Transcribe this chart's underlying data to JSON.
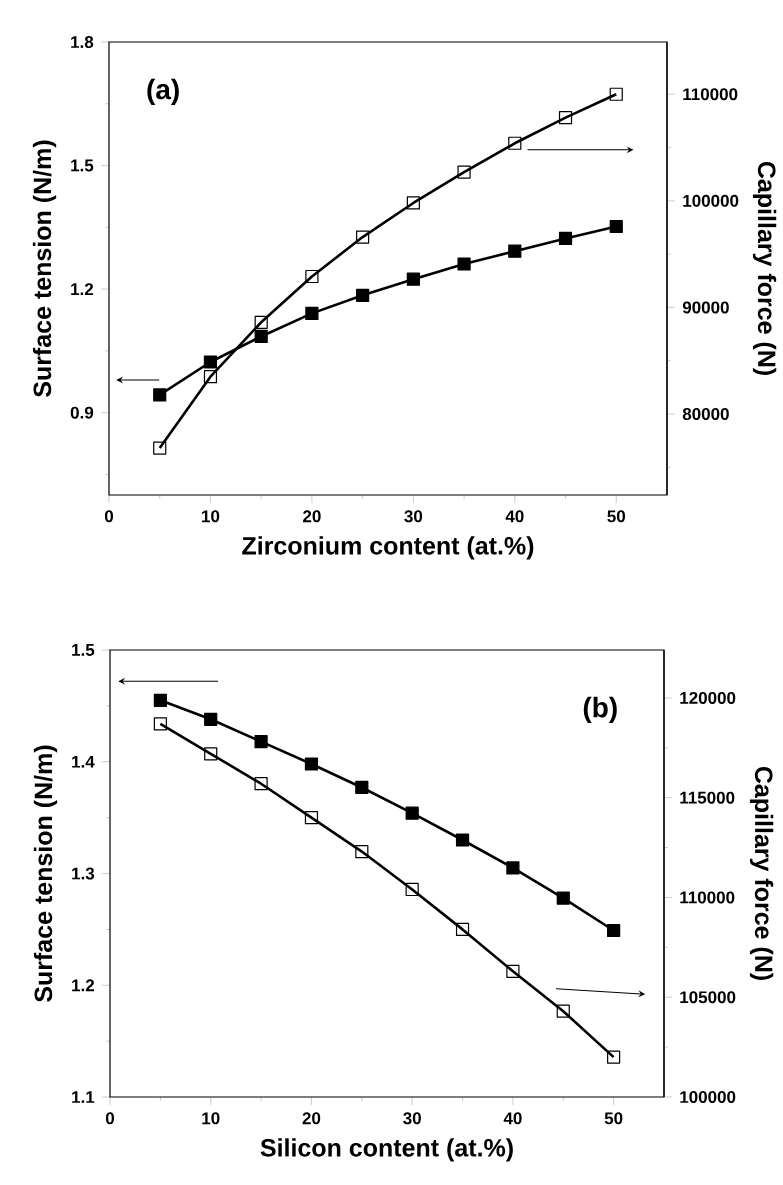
{
  "chart_data": [
    {
      "type": "line",
      "xlabel": "Zirconium content (at.%)",
      "ylabel": "Surface tension (N/m)",
      "y2label": "Capillary force (N)",
      "annotations": [
        "(a)"
      ],
      "marker": "square",
      "x": [
        5,
        10,
        15,
        20,
        25,
        30,
        35,
        40,
        45,
        50
      ],
      "xlim": [
        0,
        55
      ],
      "xticks": [
        0,
        {
          "value": 5,
          "label": null
        },
        10,
        {
          "value": 15,
          "label": null
        },
        20,
        {
          "value": 25,
          "label": null
        },
        30,
        {
          "value": 35,
          "label": null
        },
        40,
        {
          "value": 45,
          "label": null
        },
        50
      ],
      "ylim": [
        0.7,
        1.8
      ],
      "yticks": [
        {
          "value": 0.75,
          "label": null
        },
        0.9,
        {
          "value": 1.05,
          "label": null
        },
        1.2,
        {
          "value": 1.35,
          "label": null
        },
        1.5,
        {
          "value": 1.65,
          "label": null
        },
        1.8
      ],
      "y2lim": [
        72400,
        114900
      ],
      "y2ticks": [
        {
          "value": 75000,
          "label": null
        },
        80000,
        {
          "value": 85000,
          "label": null
        },
        90000,
        {
          "value": 95000,
          "label": null
        },
        100000,
        {
          "value": 105000,
          "label": null
        },
        110000
      ],
      "series": [
        {
          "color": "#000000",
          "values": [
            0.943,
            1.023,
            1.085,
            1.141,
            1.185,
            1.224,
            1.261,
            1.292,
            1.323,
            1.352
          ]
        },
        {
          "color": "#000000",
          "axis": "y2",
          "values": [
            76800,
            83500,
            88600,
            92900,
            96600,
            99800,
            102700,
            105400,
            107800,
            110000
          ]
        }
      ]
    },
    {
      "type": "line",
      "xlabel": "Silicon content (at.%)",
      "ylabel": "Surface tension (N/m)",
      "y2label": "Capillary force (N)",
      "annotations": [
        "(b)"
      ],
      "marker": "square",
      "x": [
        5,
        10,
        15,
        20,
        25,
        30,
        35,
        40,
        45,
        50
      ],
      "xlim": [
        0,
        55
      ],
      "xticks": [
        0,
        {
          "value": 5,
          "label": null
        },
        10,
        {
          "value": 15,
          "label": null
        },
        20,
        {
          "value": 25,
          "label": null
        },
        30,
        {
          "value": 35,
          "label": null
        },
        40,
        {
          "value": 45,
          "label": null
        },
        50
      ],
      "ylim": [
        1.1,
        1.5
      ],
      "yticks": [
        1.1,
        {
          "value": 1.15,
          "label": null
        },
        1.2,
        {
          "value": 1.25,
          "label": null
        },
        1.3,
        {
          "value": 1.35,
          "label": null
        },
        1.4,
        {
          "value": 1.45,
          "label": null
        },
        1.5
      ],
      "y2lim": [
        100000,
        122400
      ],
      "y2ticks": [
        100000,
        {
          "value": 102500,
          "label": null
        },
        105000,
        {
          "value": 107500,
          "label": null
        },
        110000,
        {
          "value": 112500,
          "label": null
        },
        115000,
        {
          "value": 117500,
          "label": null
        },
        120000
      ],
      "series": [
        {
          "color": "#000000",
          "values": [
            1.455,
            1.438,
            1.418,
            1.398,
            1.377,
            1.354,
            1.33,
            1.305,
            1.278,
            1.249
          ]
        },
        {
          "color": "#000000",
          "axis": "y2",
          "values": [
            118700,
            117200,
            115700,
            114000,
            112300,
            110400,
            108400,
            106300,
            104300,
            102000
          ]
        }
      ]
    }
  ]
}
